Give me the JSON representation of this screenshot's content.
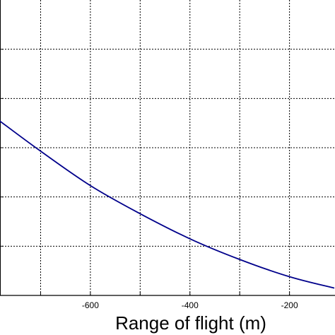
{
  "chart_data": {
    "type": "line",
    "title": "",
    "xlabel": "Range of flight (m)",
    "ylabel": "",
    "xlim": [
      -783,
      -110
    ],
    "ylim": [
      0,
      6
    ],
    "x_ticks": [
      -800,
      -700,
      -600,
      -500,
      -400,
      -300,
      -200
    ],
    "x_tick_labels": [
      {
        "value": -600,
        "label": "-600"
      },
      {
        "value": -400,
        "label": "-400"
      },
      {
        "value": -200,
        "label": "-200"
      }
    ],
    "y_grid": [
      1,
      2,
      3,
      4,
      5
    ],
    "grid": true,
    "grid_style": "dotted",
    "series": [
      {
        "color": "#00008b",
        "x": [
          -783,
          -700,
          -600,
          -500,
          -400,
          -300,
          -200,
          -110
        ],
        "y": [
          3.55,
          2.93,
          2.23,
          1.66,
          1.15,
          0.73,
          0.38,
          0.15
        ]
      }
    ]
  }
}
